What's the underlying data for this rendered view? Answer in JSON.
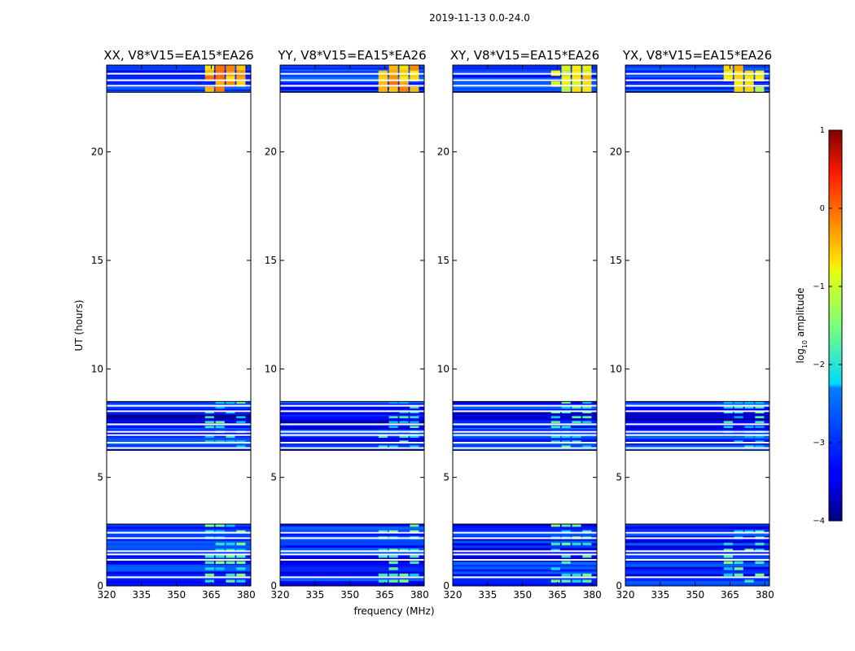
{
  "figure": {
    "suptitle": "2019-11-13 0.0-24.0",
    "xlabel": "frequency (MHz)",
    "ylabel": "UT (hours)"
  },
  "chart_data": {
    "type": "heatmap",
    "xlim": [
      320,
      382
    ],
    "ylim": [
      0,
      24
    ],
    "xticks": [
      320,
      335,
      350,
      365,
      380
    ],
    "xtick_labels": [
      "320",
      "335",
      "350",
      "365",
      "380"
    ],
    "yticks": [
      0,
      5,
      10,
      15,
      20
    ],
    "ytick_labels": [
      "0",
      "5",
      "10",
      "15",
      "20"
    ],
    "observed_time_ranges_hours": [
      [
        0.0,
        2.85
      ],
      [
        6.25,
        8.5
      ],
      [
        22.75,
        24.0
      ]
    ],
    "gap_lines_hours": [
      0.4,
      1.2,
      1.45,
      1.6,
      2.2,
      2.45,
      6.35,
      6.6,
      6.95,
      7.1,
      7.45,
      8.05,
      8.3,
      23.05,
      23.3,
      23.6
    ],
    "rfi_band_mhz": [
      362,
      380
    ],
    "panels": [
      {
        "title": "XX, V8*V15=EA15*EA26",
        "polarization": "XX"
      },
      {
        "title": "YY, V8*V15=EA15*EA26",
        "polarization": "YY"
      },
      {
        "title": "XY, V8*V15=EA15*EA26",
        "polarization": "XY"
      },
      {
        "title": "YX, V8*V15=EA15*EA26",
        "polarization": "YX"
      }
    ],
    "colorbar": {
      "label": "log10 amplitude",
      "label_main": "log",
      "label_sub": "10",
      "label_rest": " amplitude",
      "min": -4,
      "max": 1,
      "ticks": [
        1,
        0,
        -1,
        -2,
        -3,
        -4
      ],
      "tick_labels": [
        "1",
        "0",
        "−1",
        "−2",
        "−3",
        "−4"
      ],
      "colormap": "jet"
    }
  }
}
